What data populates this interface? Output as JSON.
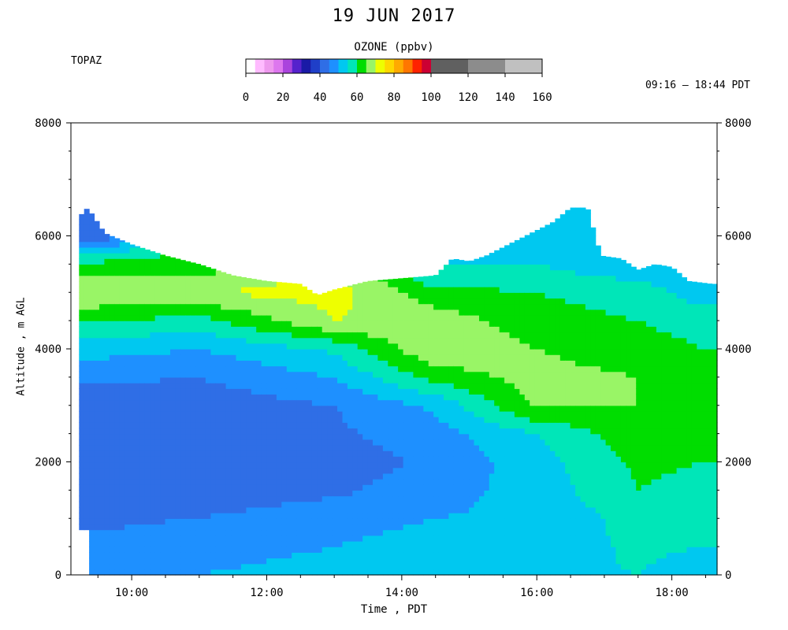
{
  "header": {
    "title": "19 JUN 2017",
    "station": "TOPAZ",
    "time_range": "09:16 – 18:44 PDT"
  },
  "colorbar": {
    "title": "OZONE (ppbv)",
    "tick_labels": [
      "0",
      "20",
      "40",
      "60",
      "80",
      "100",
      "120",
      "140",
      "160"
    ],
    "levels": [
      {
        "from": 0,
        "to": 5,
        "color": "#ffffff"
      },
      {
        "from": 5,
        "to": 10,
        "color": "#ffbbff"
      },
      {
        "from": 10,
        "to": 15,
        "color": "#ee99ee"
      },
      {
        "from": 15,
        "to": 20,
        "color": "#dd77ee"
      },
      {
        "from": 20,
        "to": 25,
        "color": "#aa44dd"
      },
      {
        "from": 25,
        "to": 30,
        "color": "#5522cc"
      },
      {
        "from": 30,
        "to": 35,
        "color": "#1a1aa6"
      },
      {
        "from": 35,
        "to": 40,
        "color": "#1f3fc8"
      },
      {
        "from": 40,
        "to": 45,
        "color": "#2f6ee6"
      },
      {
        "from": 45,
        "to": 50,
        "color": "#1e90ff"
      },
      {
        "from": 50,
        "to": 55,
        "color": "#00c8f0"
      },
      {
        "from": 55,
        "to": 60,
        "color": "#00e6b8"
      },
      {
        "from": 60,
        "to": 65,
        "color": "#00dd00"
      },
      {
        "from": 65,
        "to": 70,
        "color": "#99f566"
      },
      {
        "from": 70,
        "to": 75,
        "color": "#eeff00"
      },
      {
        "from": 75,
        "to": 80,
        "color": "#ffd700"
      },
      {
        "from": 80,
        "to": 85,
        "color": "#ffaa00"
      },
      {
        "from": 85,
        "to": 90,
        "color": "#ff7700"
      },
      {
        "from": 90,
        "to": 95,
        "color": "#ff2200"
      },
      {
        "from": 95,
        "to": 100,
        "color": "#cc0033"
      },
      {
        "from": 100,
        "to": 120,
        "color": "#606060"
      },
      {
        "from": 120,
        "to": 140,
        "color": "#8c8c8c"
      },
      {
        "from": 140,
        "to": 160,
        "color": "#c0c0c0"
      }
    ]
  },
  "chart_data": {
    "type": "heatmap",
    "title": "19 JUN 2017",
    "xlabel": "Time , PDT",
    "ylabel": "Altitude , m AGL",
    "x_ticks": [
      "10:00",
      "12:00",
      "14:00",
      "16:00",
      "18:00"
    ],
    "y_ticks": [
      "0",
      "2000",
      "4000",
      "6000",
      "8000"
    ],
    "xlim_hours": [
      9.1,
      18.67
    ],
    "ylim_m": [
      0,
      8000
    ],
    "x_tick_hours": [
      10,
      12,
      14,
      16,
      18
    ],
    "y_tick_values": [
      0,
      2000,
      4000,
      6000,
      8000
    ],
    "profile_top_m": [
      {
        "t": 9.15,
        "top": 6250
      },
      {
        "t": 9.35,
        "top": 6500
      },
      {
        "t": 9.6,
        "top": 6050
      },
      {
        "t": 10.0,
        "top": 5850
      },
      {
        "t": 10.5,
        "top": 5650
      },
      {
        "t": 11.0,
        "top": 5500
      },
      {
        "t": 11.5,
        "top": 5300
      },
      {
        "t": 12.0,
        "top": 5200
      },
      {
        "t": 12.5,
        "top": 5150
      },
      {
        "t": 12.75,
        "top": 4950
      },
      {
        "t": 13.0,
        "top": 5050
      },
      {
        "t": 13.5,
        "top": 5200
      },
      {
        "t": 14.0,
        "top": 5250
      },
      {
        "t": 14.5,
        "top": 5300
      },
      {
        "t": 14.75,
        "top": 5600
      },
      {
        "t": 15.0,
        "top": 5550
      },
      {
        "t": 15.25,
        "top": 5650
      },
      {
        "t": 15.5,
        "top": 5800
      },
      {
        "t": 15.75,
        "top": 5950
      },
      {
        "t": 16.0,
        "top": 6100
      },
      {
        "t": 16.25,
        "top": 6250
      },
      {
        "t": 16.5,
        "top": 6500
      },
      {
        "t": 16.75,
        "top": 6500
      },
      {
        "t": 16.95,
        "top": 5650
      },
      {
        "t": 17.25,
        "top": 5600
      },
      {
        "t": 17.5,
        "top": 5400
      },
      {
        "t": 17.75,
        "top": 5500
      },
      {
        "t": 18.0,
        "top": 5450
      },
      {
        "t": 18.25,
        "top": 5200
      },
      {
        "t": 18.6,
        "top": 5150
      }
    ],
    "ozone_profiles_ppbv": [
      {
        "t": 9.5,
        "z": [
          0,
          500,
          1000,
          1500,
          2000,
          2500,
          3000,
          3500,
          4000,
          4500,
          5000,
          5500,
          6000
        ],
        "o3": [
          48,
          46,
          44,
          42,
          40,
          44,
          41,
          46,
          52,
          60,
          70,
          62,
          40
        ]
      },
      {
        "t": 11.0,
        "z": [
          0,
          500,
          1000,
          1500,
          2000,
          2500,
          3000,
          3500,
          4000,
          4500,
          5000,
          5400
        ],
        "o3": [
          50,
          49,
          45,
          42,
          40,
          45,
          42,
          45,
          50,
          58,
          70,
          63
        ]
      },
      {
        "t": 13.0,
        "z": [
          0,
          500,
          1000,
          1500,
          2000,
          2500,
          3000,
          3500,
          4000,
          4500,
          5000
        ],
        "o3": [
          51,
          50,
          48,
          44,
          42,
          44,
          45,
          50,
          56,
          70,
          72
        ]
      },
      {
        "t": 14.5,
        "z": [
          0,
          500,
          1000,
          1500,
          2000,
          2500,
          3000,
          3500,
          4000,
          4500,
          5000,
          5300
        ],
        "o3": [
          53,
          52,
          50,
          48,
          46,
          48,
          51,
          62,
          70,
          68,
          62,
          55
        ]
      },
      {
        "t": 16.0,
        "z": [
          0,
          500,
          1000,
          1500,
          2000,
          2500,
          3000,
          3500,
          4000,
          4500,
          5000,
          5500,
          6000
        ],
        "o3": [
          54,
          52,
          51,
          52,
          53,
          55,
          66,
          67,
          65,
          62,
          60,
          55,
          50
        ]
      },
      {
        "t": 17.5,
        "z": [
          0,
          500,
          1000,
          1500,
          2000,
          2500,
          3000,
          3500,
          4000,
          4500,
          5000,
          5400
        ],
        "o3": [
          55,
          56,
          57,
          60,
          61,
          63,
          65,
          65,
          62,
          60,
          58,
          52
        ]
      },
      {
        "t": 18.5,
        "z": [
          0,
          500,
          1000,
          1500,
          2000,
          2500,
          3000,
          3500,
          4000,
          4500,
          5000
        ],
        "o3": [
          52,
          55,
          57,
          58,
          60,
          61,
          62,
          61,
          60,
          58,
          52
        ]
      }
    ],
    "grid": false,
    "legend": "colorbar top-center"
  }
}
